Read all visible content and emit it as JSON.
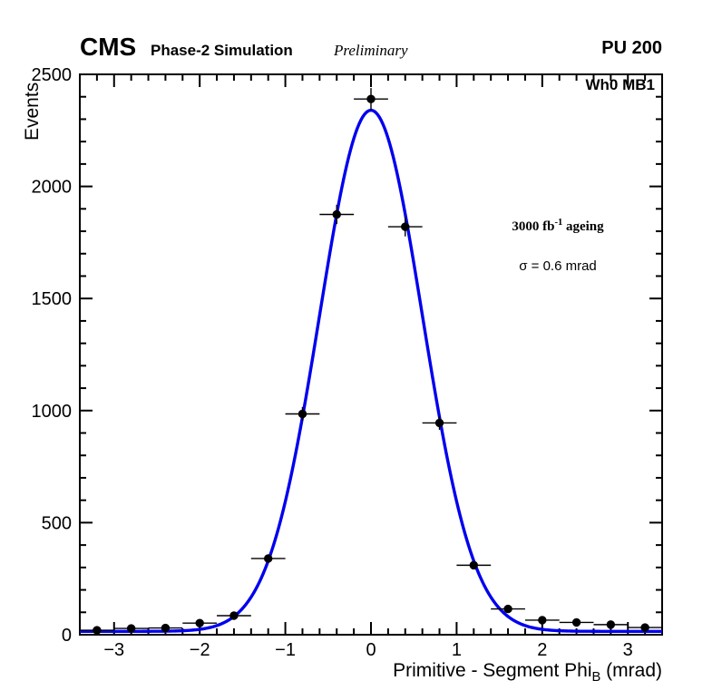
{
  "header": {
    "experiment": "CMS",
    "subtitle": "Phase-2 Simulation",
    "preliminary": "Preliminary",
    "pileup": "PU 200"
  },
  "plot_labels": {
    "region": "Wh0 MB1",
    "ageing_prefix": "3000 fb",
    "ageing_sup": "-1",
    "ageing_suffix": " ageing",
    "sigma": "σ = 0.6 mrad"
  },
  "axes": {
    "y_title": "Events",
    "x_title_main": "Primitive - Segment Phi",
    "x_title_sub": "B",
    "x_title_suffix": " (mrad)"
  },
  "chart_data": {
    "type": "scatter",
    "title": "",
    "xlabel": "Primitive - Segment PhiB (mrad)",
    "ylabel": "Events",
    "xlim": [
      -3.4,
      3.4
    ],
    "ylim": [
      0,
      2500
    ],
    "xticks": [
      -3,
      -2,
      -1,
      0,
      1,
      2,
      3
    ],
    "yticks": [
      0,
      500,
      1000,
      1500,
      2000,
      2500
    ],
    "x_minor": 0.2,
    "y_minor": 100,
    "grid": false,
    "legend": "none",
    "marker_color": "#000000",
    "points": [
      {
        "x": -3.2,
        "y": 20,
        "xerr": 0.2,
        "yerr": 5
      },
      {
        "x": -2.8,
        "y": 28,
        "xerr": 0.2,
        "yerr": 5
      },
      {
        "x": -2.4,
        "y": 30,
        "xerr": 0.2,
        "yerr": 6
      },
      {
        "x": -2.0,
        "y": 52,
        "xerr": 0.2,
        "yerr": 7
      },
      {
        "x": -1.6,
        "y": 85,
        "xerr": 0.2,
        "yerr": 9
      },
      {
        "x": -1.2,
        "y": 340,
        "xerr": 0.2,
        "yerr": 18
      },
      {
        "x": -0.8,
        "y": 985,
        "xerr": 0.2,
        "yerr": 31
      },
      {
        "x": -0.4,
        "y": 1875,
        "xerr": 0.2,
        "yerr": 43
      },
      {
        "x": 0.0,
        "y": 2390,
        "xerr": 0.2,
        "yerr": 49
      },
      {
        "x": 0.4,
        "y": 1820,
        "xerr": 0.2,
        "yerr": 43
      },
      {
        "x": 0.8,
        "y": 945,
        "xerr": 0.2,
        "yerr": 31
      },
      {
        "x": 1.2,
        "y": 310,
        "xerr": 0.2,
        "yerr": 18
      },
      {
        "x": 1.6,
        "y": 115,
        "xerr": 0.2,
        "yerr": 11
      },
      {
        "x": 2.0,
        "y": 65,
        "xerr": 0.2,
        "yerr": 8
      },
      {
        "x": 2.4,
        "y": 55,
        "xerr": 0.2,
        "yerr": 7
      },
      {
        "x": 2.8,
        "y": 45,
        "xerr": 0.2,
        "yerr": 7
      },
      {
        "x": 3.2,
        "y": 32,
        "xerr": 0.2,
        "yerr": 6
      }
    ],
    "fit": {
      "shape": "gaussian+const",
      "amplitude": 2325,
      "mean": 0,
      "sigma": 0.6,
      "constant": 15,
      "color": "#0000ee"
    }
  }
}
